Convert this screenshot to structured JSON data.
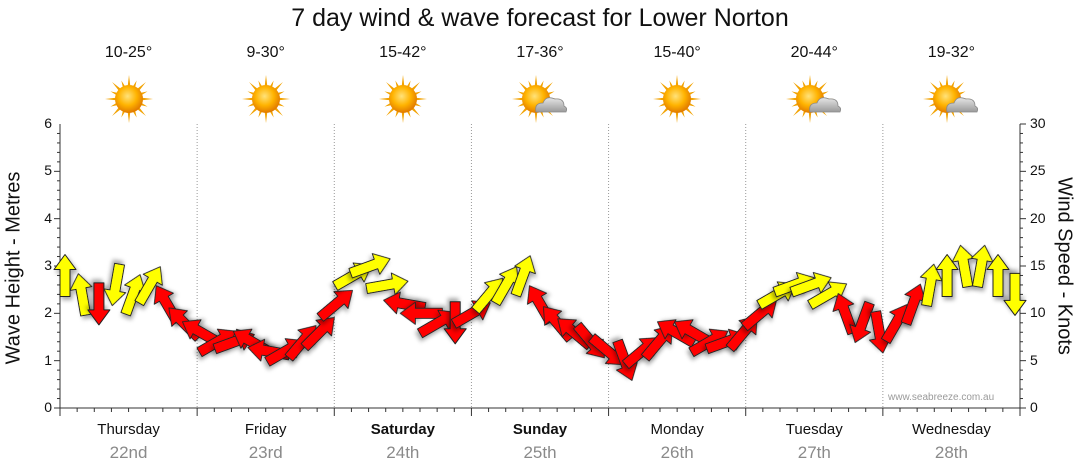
{
  "chart_data": {
    "type": "line",
    "title": "7 day wind & wave forecast for Lower Norton",
    "ylabel_left": "Wave Height - Metres",
    "ylabel_right": "Wind Speed - Knots",
    "ylim_left": [
      0,
      6
    ],
    "ylim_right": [
      0,
      30
    ],
    "yticks_left": [
      "0",
      "1",
      "2",
      "3",
      "4",
      "5",
      "6"
    ],
    "yticks_right": [
      "0",
      "5",
      "10",
      "15",
      "20",
      "25",
      "30"
    ],
    "grid": "dotted vertical every 24h",
    "days": [
      {
        "name": "Thursday",
        "date": "22nd",
        "temp": "10-25°",
        "icon": "sun-icon",
        "bold": false
      },
      {
        "name": "Friday",
        "date": "23rd",
        "temp": "9-30°",
        "icon": "sun-icon",
        "bold": false
      },
      {
        "name": "Saturday",
        "date": "24th",
        "temp": "15-42°",
        "icon": "sun-icon",
        "bold": true
      },
      {
        "name": "Sunday",
        "date": "25th",
        "temp": "17-36°",
        "icon": "partly-cloudy-icon",
        "bold": true
      },
      {
        "name": "Monday",
        "date": "26th",
        "temp": "15-40°",
        "icon": "sun-icon",
        "bold": false
      },
      {
        "name": "Tuesday",
        "date": "27th",
        "temp": "20-44°",
        "icon": "partly-cloudy-icon",
        "bold": false
      },
      {
        "name": "Wednesday",
        "date": "28th",
        "temp": "19-32°",
        "icon": "partly-cloudy-icon",
        "bold": false
      }
    ],
    "series": [
      {
        "unit": "knots",
        "hours": [
          0,
          3,
          6,
          9,
          12,
          15,
          18,
          21,
          24,
          27,
          30,
          33,
          36,
          39,
          42,
          45,
          48,
          51,
          54,
          57,
          60,
          63,
          66,
          69,
          72,
          75,
          78,
          81,
          84,
          87,
          90,
          93,
          96,
          99,
          102,
          105,
          108,
          111,
          114,
          117,
          120,
          123,
          126,
          129,
          132,
          135,
          138,
          141,
          144,
          147,
          150,
          153,
          156,
          159,
          162,
          165,
          168
        ],
        "speed": [
          14,
          12,
          11,
          13,
          12,
          13,
          11,
          9,
          8,
          7,
          7,
          7,
          6,
          6,
          7,
          8,
          11,
          14,
          15,
          13,
          11,
          10,
          9,
          9,
          10,
          12,
          13,
          14,
          11,
          9,
          8,
          7,
          6,
          5,
          6,
          7,
          8,
          8,
          7,
          7,
          8,
          10,
          12,
          13,
          13,
          12,
          10,
          9,
          8,
          9,
          11,
          13,
          14,
          15,
          15,
          14,
          12
        ],
        "direction_deg": [
          0,
          350,
          180,
          190,
          20,
          30,
          330,
          315,
          300,
          60,
          70,
          300,
          280,
          60,
          40,
          45,
          50,
          60,
          70,
          80,
          280,
          270,
          60,
          180,
          60,
          40,
          30,
          20,
          330,
          320,
          310,
          140,
          130,
          160,
          50,
          40,
          300,
          300,
          60,
          70,
          40,
          50,
          60,
          70,
          70,
          60,
          340,
          200,
          170,
          30,
          20,
          10,
          0,
          350,
          10,
          0,
          180
        ]
      }
    ],
    "credit": "www.seabreeze.com.au"
  }
}
